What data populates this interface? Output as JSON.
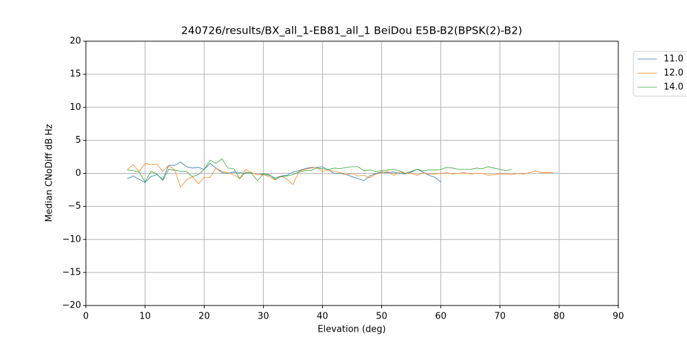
{
  "chart_data": {
    "type": "line",
    "title": "240726/results/BX_all_1-EB81_all_1 BeiDou E5B-B2(BPSK(2)-B2)",
    "x_label": "Elevation (deg)",
    "y_label": "Median CNoDiff dB Hz",
    "xlim": [
      0,
      90
    ],
    "ylim": [
      -20,
      20
    ],
    "xticks": [
      0,
      10,
      20,
      30,
      40,
      50,
      60,
      70,
      80,
      90
    ],
    "yticks": [
      {
        "value": -20,
        "label": "−20"
      },
      {
        "value": -15,
        "label": "−15"
      },
      {
        "value": -10,
        "label": "−10"
      },
      {
        "value": -5,
        "label": "−5"
      },
      0,
      5,
      10,
      15,
      20
    ],
    "grid": true,
    "legend": "outside-upper-right",
    "series": [
      {
        "name": "11.0",
        "color": "#1f77b4",
        "x": [
          7,
          8,
          9,
          10,
          11,
          12,
          13,
          14,
          15,
          16,
          17,
          18,
          19,
          20,
          21,
          22,
          23,
          24,
          25,
          26,
          27,
          28,
          29,
          30,
          31,
          32,
          33,
          34,
          35,
          36,
          37,
          38,
          39,
          40,
          41,
          42,
          43,
          44,
          45,
          46,
          47,
          48,
          49,
          50,
          51,
          52,
          53,
          54,
          55,
          56,
          57,
          58,
          59,
          60
        ],
        "values": [
          -0.8,
          -0.4,
          -0.9,
          -1.4,
          -0.5,
          -0.2,
          -0.9,
          1.2,
          1.2,
          1.7,
          1.0,
          0.8,
          0.9,
          0.6,
          1.5,
          0.8,
          0.1,
          0.0,
          0.2,
          0.1,
          0.0,
          0.1,
          -0.2,
          -0.1,
          -0.3,
          -0.7,
          -0.4,
          -0.3,
          0.2,
          0.4,
          0.7,
          0.9,
          0.9,
          1.0,
          0.5,
          0.0,
          0.0,
          -0.2,
          -0.5,
          -0.8,
          -1.1,
          -0.4,
          0.0,
          0.2,
          0.1,
          0.2,
          0.0,
          -0.1,
          0.2,
          0.6,
          0.2,
          -0.3,
          -0.6,
          -1.3
        ]
      },
      {
        "name": "12.0",
        "color": "#ff7f0e",
        "x": [
          7,
          8,
          9,
          10,
          11,
          12,
          13,
          14,
          15,
          16,
          17,
          18,
          19,
          20,
          21,
          22,
          23,
          24,
          25,
          26,
          27,
          28,
          29,
          30,
          31,
          32,
          33,
          34,
          35,
          36,
          37,
          38,
          39,
          40,
          41,
          42,
          43,
          44,
          45,
          46,
          47,
          48,
          49,
          50,
          51,
          52,
          53,
          54,
          55,
          56,
          57,
          58,
          59,
          60,
          61,
          62,
          63,
          64,
          65,
          66,
          67,
          68,
          69,
          70,
          71,
          72,
          73,
          74,
          75,
          76,
          77,
          78,
          79
        ],
        "values": [
          0.6,
          1.3,
          0.3,
          1.5,
          1.3,
          1.4,
          0.3,
          1.2,
          0.5,
          -2.1,
          -1.0,
          -0.5,
          -1.6,
          -0.6,
          -0.6,
          0.8,
          0.3,
          0.1,
          -0.2,
          -0.8,
          0.6,
          0.1,
          -0.2,
          -0.2,
          -0.5,
          -1.0,
          -0.4,
          -0.9,
          -1.7,
          0.3,
          0.6,
          0.8,
          0.9,
          0.3,
          0.5,
          0.3,
          0.1,
          -0.2,
          0.0,
          -0.4,
          -0.3,
          -0.7,
          -0.1,
          0.1,
          0.3,
          -0.3,
          0.2,
          0.0,
          0.0,
          -0.3,
          0.1,
          -0.1,
          -0.1,
          0.0,
          0.1,
          -0.1,
          0.0,
          0.1,
          -0.1,
          0.0,
          0.0,
          -0.3,
          -0.2,
          -0.1,
          -0.1,
          -0.2,
          0.0,
          -0.1,
          0.1,
          0.4,
          0.1,
          0.1,
          0.1
        ]
      },
      {
        "name": "14.0",
        "color": "#2ca02c",
        "x": [
          7,
          8,
          9,
          10,
          11,
          12,
          13,
          14,
          15,
          16,
          17,
          18,
          19,
          20,
          21,
          22,
          23,
          24,
          25,
          26,
          27,
          28,
          29,
          30,
          31,
          32,
          33,
          34,
          35,
          36,
          37,
          38,
          39,
          40,
          41,
          42,
          43,
          44,
          45,
          46,
          47,
          48,
          49,
          50,
          51,
          52,
          53,
          54,
          55,
          56,
          57,
          58,
          59,
          60,
          61,
          62,
          63,
          64,
          65,
          66,
          67,
          68,
          69,
          70,
          71,
          72
        ],
        "values": [
          0.5,
          0.4,
          0.2,
          -1.3,
          0.3,
          -0.1,
          -1.1,
          0.6,
          0.5,
          0.3,
          0.3,
          -0.5,
          -0.2,
          0.6,
          2.0,
          1.5,
          2.2,
          0.8,
          0.7,
          -0.8,
          0.2,
          0.0,
          -1.1,
          -0.1,
          -0.2,
          -0.9,
          -0.5,
          -0.4,
          -0.2,
          0.2,
          0.4,
          0.4,
          0.8,
          0.7,
          0.6,
          0.8,
          0.7,
          0.9,
          1.0,
          1.0,
          0.4,
          0.5,
          0.3,
          0.4,
          0.5,
          0.6,
          0.4,
          0.0,
          0.3,
          0.6,
          0.4,
          0.5,
          0.5,
          0.6,
          0.9,
          0.8,
          0.6,
          0.6,
          0.6,
          0.8,
          0.7,
          1.0,
          0.8,
          0.6,
          0.4,
          0.6
        ]
      }
    ]
  }
}
